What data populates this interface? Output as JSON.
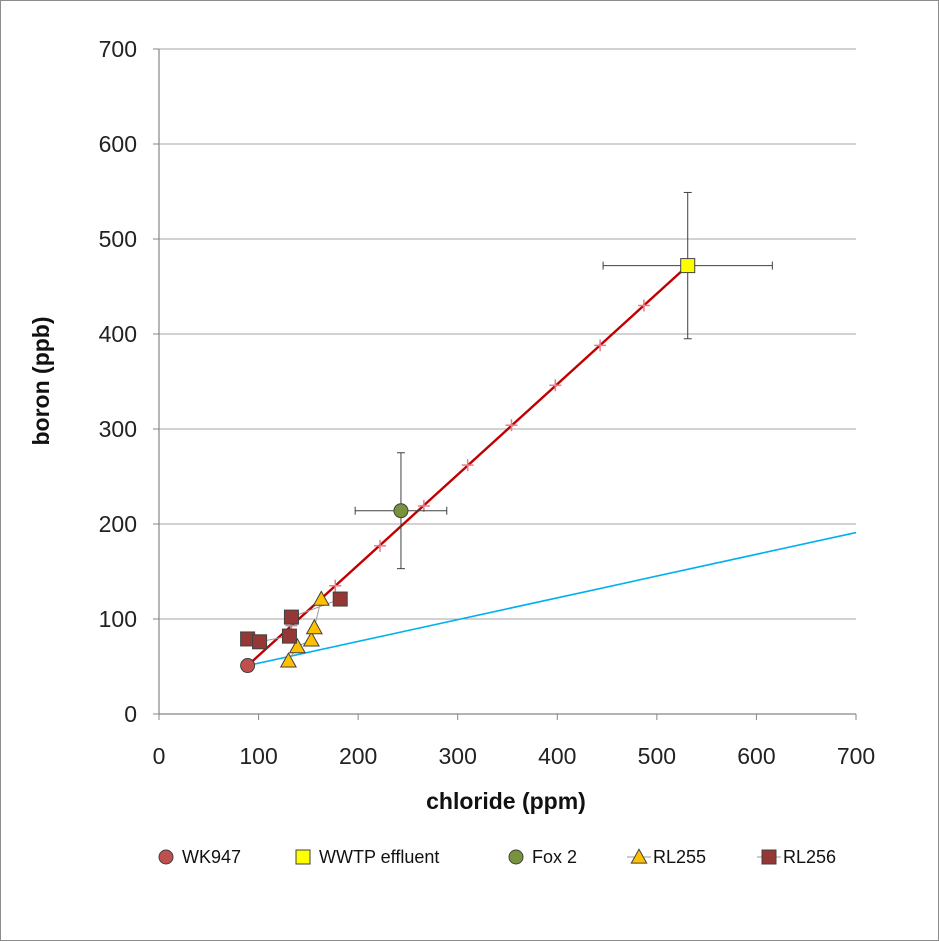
{
  "chart_data": {
    "type": "scatter",
    "xlabel": "chloride (ppm)",
    "ylabel": "boron (ppb)",
    "xlim": [
      0,
      700
    ],
    "ylim": [
      0,
      700
    ],
    "xticks": [
      "0",
      "100",
      "200",
      "300",
      "400",
      "500",
      "600",
      "700"
    ],
    "yticks": [
      "0",
      "100",
      "200",
      "300",
      "400",
      "500",
      "600",
      "700"
    ],
    "grid": "horizontal",
    "legend_position": "bottom",
    "series": [
      {
        "name": "WK947",
        "marker": "circle",
        "color": "#c0504d",
        "points": [
          {
            "x": 89,
            "y": 51
          }
        ]
      },
      {
        "name": "WWTP effluent",
        "marker": "square",
        "color": "#ffff00",
        "points": [
          {
            "x": 531,
            "y": 472,
            "xerr": 85,
            "yerr": 77
          }
        ]
      },
      {
        "name": "Fox 2",
        "marker": "circle",
        "color": "#77933c",
        "points": [
          {
            "x": 243,
            "y": 214,
            "xerr": 46,
            "yerr": 61
          }
        ]
      },
      {
        "name": "RL255",
        "marker": "triangle",
        "color": "#ffc000",
        "connected": true,
        "points": [
          {
            "x": 130,
            "y": 56
          },
          {
            "x": 139,
            "y": 71
          },
          {
            "x": 153,
            "y": 78
          },
          {
            "x": 156,
            "y": 91
          },
          {
            "x": 163,
            "y": 121
          }
        ]
      },
      {
        "name": "RL256",
        "marker": "square",
        "color": "#953735",
        "connected": true,
        "points": [
          {
            "x": 89,
            "y": 79
          },
          {
            "x": 101,
            "y": 76
          },
          {
            "x": 131,
            "y": 82
          },
          {
            "x": 133,
            "y": 102
          },
          {
            "x": 182,
            "y": 121
          }
        ]
      }
    ],
    "mixing_line": {
      "color": "#c00000",
      "from": {
        "x": 89,
        "y": 51
      },
      "to": {
        "x": 531,
        "y": 472
      },
      "tick_marks": [
        {
          "x": 133,
          "y": 93
        },
        {
          "x": 177,
          "y": 135
        },
        {
          "x": 222,
          "y": 177
        },
        {
          "x": 266,
          "y": 219
        },
        {
          "x": 310,
          "y": 262
        },
        {
          "x": 354,
          "y": 304
        },
        {
          "x": 398,
          "y": 346
        },
        {
          "x": 443,
          "y": 388
        },
        {
          "x": 487,
          "y": 430
        }
      ]
    },
    "reference_line": {
      "color": "#00b0f0",
      "from": {
        "x": 89,
        "y": 51
      },
      "to": {
        "x": 700,
        "y": 191
      }
    }
  }
}
